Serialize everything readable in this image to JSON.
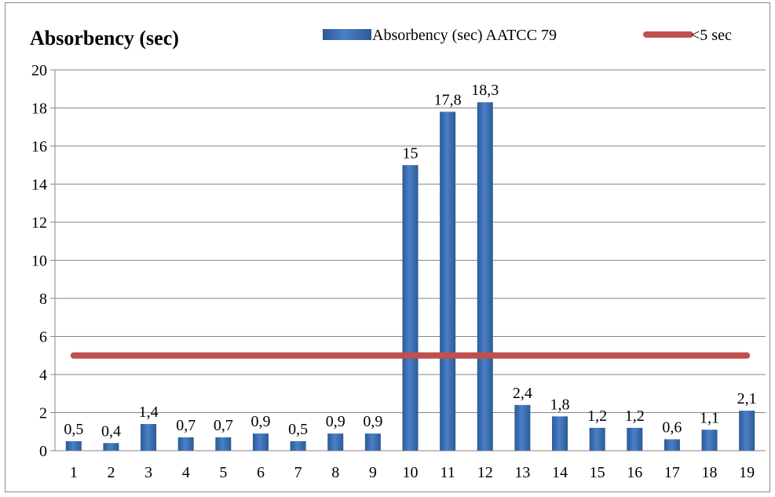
{
  "chart_data": {
    "type": "bar",
    "title": "Absorbency (sec)",
    "categories": [
      "1",
      "2",
      "3",
      "4",
      "5",
      "6",
      "7",
      "8",
      "9",
      "10",
      "11",
      "12",
      "13",
      "14",
      "15",
      "16",
      "17",
      "18",
      "19"
    ],
    "series": [
      {
        "name": "Absorbency (sec) AATCC 79",
        "type": "bar",
        "values": [
          0.5,
          0.4,
          1.4,
          0.7,
          0.7,
          0.9,
          0.5,
          0.9,
          0.9,
          15,
          17.8,
          18.3,
          2.4,
          1.8,
          1.2,
          1.2,
          0.6,
          1.1,
          2.1
        ],
        "labels": [
          "0,5",
          "0,4",
          "1,4",
          "0,7",
          "0,7",
          "0,9",
          "0,5",
          "0,9",
          "0,9",
          "15",
          "17,8",
          "18,3",
          "2,4",
          "1,8",
          "1,2",
          "1,2",
          "0,6",
          "1,1",
          "2,1"
        ],
        "color": "#3b6fb4"
      },
      {
        "name": "<5 sec",
        "type": "line",
        "values": [
          5,
          5,
          5,
          5,
          5,
          5,
          5,
          5,
          5,
          5,
          5,
          5,
          5,
          5,
          5,
          5,
          5,
          5,
          5
        ],
        "color": "#c0504d"
      }
    ],
    "yticks": [
      "0",
      "2",
      "4",
      "6",
      "8",
      "10",
      "12",
      "14",
      "16",
      "18",
      "20"
    ],
    "ylim": [
      0,
      20
    ],
    "grid": true,
    "legend_position": "top-right"
  }
}
